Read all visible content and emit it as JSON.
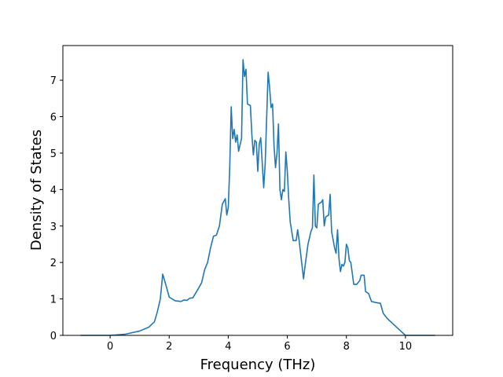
{
  "chart_data": {
    "type": "line",
    "x_label": "Frequency (THz)",
    "y_label": "Density of States",
    "color": "#1f77b4",
    "xlim": [
      -1.6,
      11.6
    ],
    "ylim": [
      0,
      7.95
    ],
    "xticks": [
      0,
      2,
      4,
      6,
      8,
      10
    ],
    "yticks": [
      0,
      1,
      2,
      3,
      4,
      5,
      6,
      7
    ],
    "x": [
      -1,
      0,
      0.5,
      1.0,
      1.3,
      1.5,
      1.6,
      1.7,
      1.78,
      1.9,
      2.0,
      2.2,
      2.4,
      2.5,
      2.6,
      2.7,
      2.8,
      3.0,
      3.1,
      3.2,
      3.3,
      3.4,
      3.5,
      3.6,
      3.7,
      3.8,
      3.9,
      3.95,
      4.0,
      4.05,
      4.1,
      4.15,
      4.2,
      4.25,
      4.3,
      4.35,
      4.45,
      4.5,
      4.55,
      4.6,
      4.65,
      4.75,
      4.8,
      4.85,
      4.9,
      4.95,
      5.0,
      5.05,
      5.1,
      5.2,
      5.25,
      5.35,
      5.4,
      5.45,
      5.5,
      5.55,
      5.6,
      5.65,
      5.7,
      5.75,
      5.8,
      5.85,
      5.9,
      5.95,
      6.0,
      6.05,
      6.1,
      6.2,
      6.3,
      6.35,
      6.4,
      6.5,
      6.55,
      6.6,
      6.7,
      6.8,
      6.85,
      6.9,
      6.95,
      7.0,
      7.05,
      7.15,
      7.2,
      7.25,
      7.3,
      7.4,
      7.45,
      7.5,
      7.6,
      7.65,
      7.7,
      7.75,
      7.8,
      7.85,
      7.9,
      7.95,
      8.0,
      8.05,
      8.1,
      8.15,
      8.25,
      8.35,
      8.45,
      8.5,
      8.6,
      8.65,
      8.75,
      8.85,
      9.0,
      9.15,
      9.25,
      9.4,
      9.6,
      9.8,
      10.0,
      11.0
    ],
    "values": [
      0,
      0,
      0.03,
      0.12,
      0.22,
      0.37,
      0.65,
      1.0,
      1.68,
      1.35,
      1.05,
      0.95,
      0.93,
      0.97,
      0.96,
      1.02,
      1.03,
      1.3,
      1.45,
      1.8,
      2.0,
      2.4,
      2.72,
      2.75,
      3.0,
      3.6,
      3.75,
      3.3,
      3.5,
      4.6,
      6.27,
      5.4,
      5.65,
      5.3,
      5.5,
      5.05,
      5.4,
      7.56,
      7.1,
      7.3,
      6.35,
      6.3,
      5.5,
      4.95,
      5.35,
      5.3,
      4.5,
      5.25,
      5.42,
      4.05,
      4.7,
      7.22,
      6.8,
      6.25,
      6.35,
      5.2,
      4.6,
      5.0,
      5.8,
      4.0,
      3.72,
      4.0,
      3.95,
      5.03,
      4.5,
      3.7,
      3.1,
      2.6,
      2.6,
      2.9,
      2.6,
      1.9,
      1.55,
      1.9,
      2.5,
      2.85,
      2.95,
      4.4,
      3.0,
      2.95,
      3.6,
      3.65,
      3.72,
      3.0,
      3.25,
      3.3,
      3.87,
      2.85,
      2.4,
      2.25,
      2.9,
      2.1,
      1.75,
      1.95,
      1.9,
      2.0,
      2.5,
      2.4,
      2.05,
      2.0,
      1.4,
      1.4,
      1.5,
      1.65,
      1.65,
      1.2,
      1.15,
      0.93,
      0.9,
      0.88,
      0.6,
      0.45,
      0.3,
      0.15,
      0,
      0
    ]
  }
}
